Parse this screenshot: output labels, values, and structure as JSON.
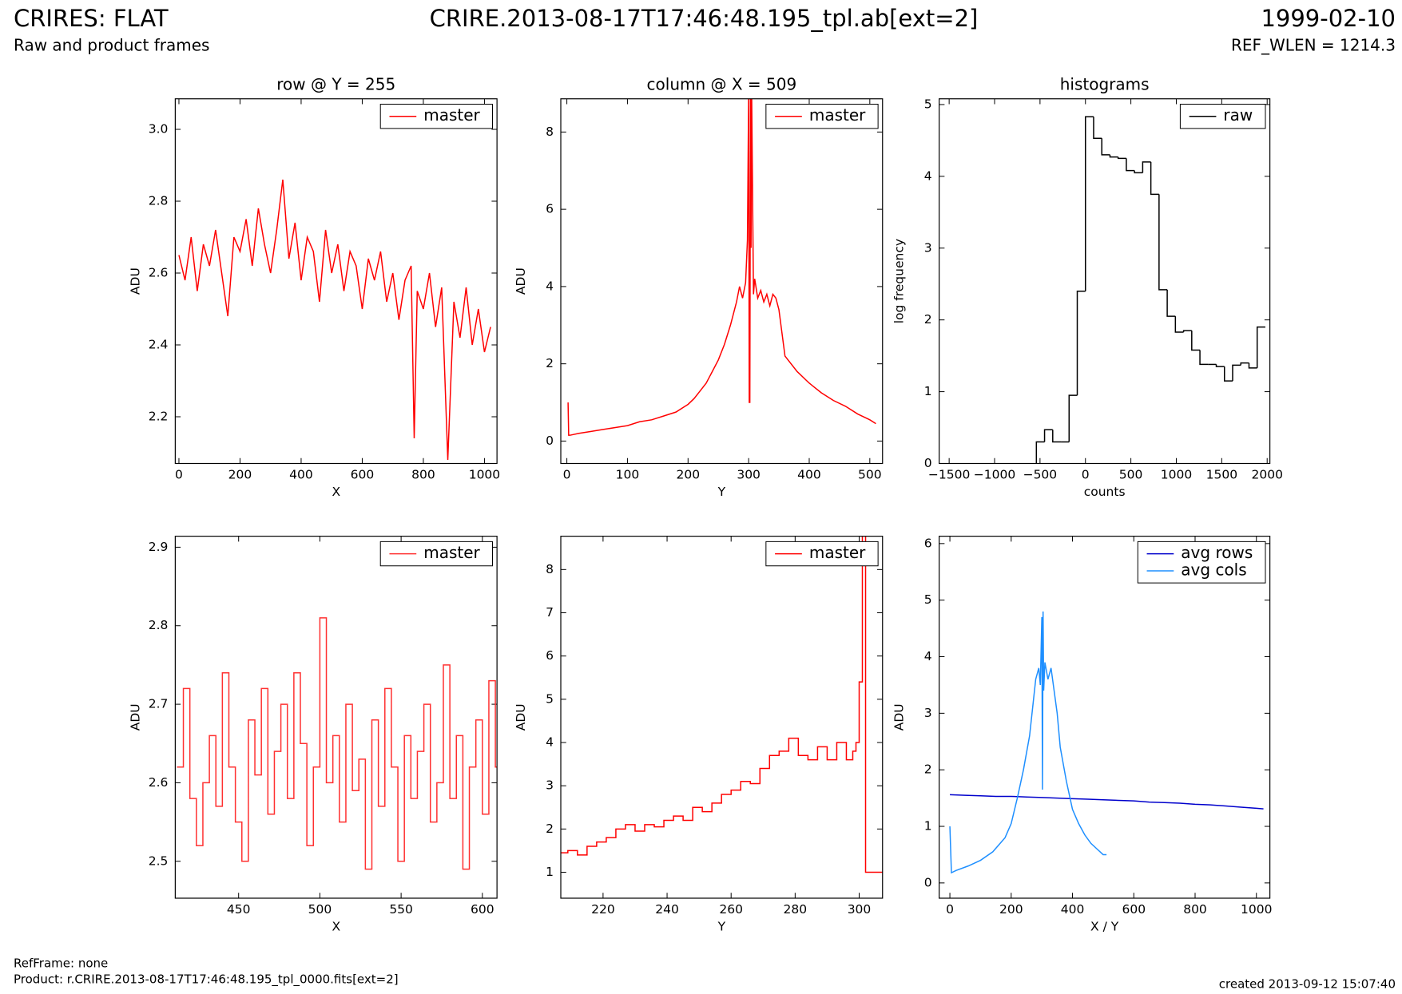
{
  "header": {
    "title": "CRIRES: FLAT",
    "subtitle": "Raw and product frames",
    "file": "CRIRE.2013-08-17T17:46:48.195_tpl.ab[ext=2]",
    "date": "1999-02-10",
    "ref_wlen": "REF_WLEN = 1214.3"
  },
  "footer": {
    "refframe": "RefFrame: none",
    "product": "Product: r.CRIRE.2013-08-17T17:46:48.195_tpl_0000.fits[ext=2]",
    "created": "created 2013-09-12 15:07:40"
  },
  "chart_data": [
    {
      "type": "line",
      "title": "row @ Y = 255",
      "xlabel": "X",
      "ylabel": "ADU",
      "legend": "upper right",
      "xlim": [
        -12,
        1041
      ],
      "ylim": [
        2.07,
        3.085
      ],
      "xticks": [
        0,
        200,
        400,
        600,
        800,
        1000
      ],
      "yticks": [
        2.2,
        2.4,
        2.6,
        2.8,
        {
          "value": 3,
          "label": "3.0"
        }
      ],
      "series": [
        {
          "name": "master",
          "color": "#ff0000",
          "x": [
            0,
            20,
            40,
            60,
            80,
            100,
            120,
            140,
            160,
            180,
            200,
            220,
            240,
            260,
            280,
            300,
            320,
            340,
            360,
            380,
            400,
            420,
            440,
            460,
            480,
            500,
            520,
            540,
            560,
            580,
            600,
            620,
            640,
            660,
            680,
            700,
            720,
            740,
            760,
            770,
            780,
            800,
            820,
            840,
            860,
            880,
            900,
            920,
            940,
            960,
            980,
            1000,
            1020
          ],
          "values": [
            2.65,
            2.58,
            2.7,
            2.55,
            2.68,
            2.62,
            2.72,
            2.6,
            2.48,
            2.7,
            2.66,
            2.75,
            2.62,
            2.78,
            2.68,
            2.6,
            2.72,
            2.86,
            2.64,
            2.74,
            2.58,
            2.7,
            2.66,
            2.52,
            2.72,
            2.6,
            2.68,
            2.55,
            2.66,
            2.62,
            2.5,
            2.64,
            2.58,
            2.66,
            2.52,
            2.6,
            2.47,
            2.58,
            2.62,
            2.14,
            2.55,
            2.5,
            2.6,
            2.45,
            2.56,
            2.08,
            2.52,
            2.42,
            2.56,
            2.4,
            2.5,
            2.38,
            2.45
          ]
        }
      ]
    },
    {
      "type": "line",
      "title": "column @ X = 509",
      "xlabel": "Y",
      "ylabel": "ADU",
      "legend": "upper right",
      "xlim": [
        -10,
        521
      ],
      "ylim": [
        -0.58,
        8.86
      ],
      "xticks": [
        0,
        100,
        200,
        300,
        400,
        500
      ],
      "yticks": [
        0,
        2,
        4,
        6,
        8
      ],
      "series": [
        {
          "name": "master",
          "color": "#ff0000",
          "x": [
            2,
            3,
            5,
            20,
            40,
            60,
            80,
            100,
            120,
            140,
            160,
            180,
            200,
            210,
            220,
            230,
            240,
            250,
            260,
            270,
            280,
            285,
            290,
            295,
            298,
            300,
            301,
            302,
            303,
            304,
            305,
            308,
            310,
            315,
            320,
            325,
            330,
            335,
            340,
            345,
            350,
            355,
            360,
            380,
            400,
            420,
            440,
            460,
            480,
            500,
            510
          ],
          "values": [
            1.0,
            0.15,
            0.15,
            0.2,
            0.25,
            0.3,
            0.35,
            0.4,
            0.5,
            0.55,
            0.65,
            0.75,
            0.95,
            1.1,
            1.3,
            1.5,
            1.8,
            2.1,
            2.5,
            3.0,
            3.6,
            4.0,
            3.7,
            4.1,
            5.2,
            9.0,
            1.0,
            1.0,
            9.0,
            5.0,
            9.0,
            3.8,
            4.2,
            3.7,
            3.9,
            3.6,
            3.8,
            3.5,
            3.8,
            3.7,
            3.4,
            2.8,
            2.2,
            1.8,
            1.5,
            1.25,
            1.05,
            0.9,
            0.7,
            0.55,
            0.45
          ]
        }
      ]
    },
    {
      "type": "histogram",
      "title": "histograms",
      "xlabel": "counts",
      "ylabel": "log frequency",
      "legend": "upper right",
      "xlim": [
        -1610,
        2030
      ],
      "ylim": [
        0,
        5.08
      ],
      "xticks": [
        {
          "value": -1500,
          "label": "−1500"
        },
        {
          "value": -1000,
          "label": "−1000"
        },
        {
          "value": -500,
          "label": "−500"
        },
        0,
        500,
        1000,
        1500,
        2000
      ],
      "yticks": [
        0,
        1,
        2,
        3,
        4,
        5
      ],
      "bins": [
        -540,
        -450,
        -360,
        -270,
        -180,
        -90,
        0,
        90,
        180,
        270,
        360,
        450,
        540,
        630,
        720,
        810,
        900,
        990,
        1080,
        1170,
        1260,
        1350,
        1440,
        1530,
        1620,
        1710,
        1800,
        1890,
        1980
      ],
      "series": [
        {
          "name": "raw",
          "color": "#000000",
          "values": [
            0.3,
            0.47,
            0.3,
            0.3,
            0.95,
            2.4,
            4.83,
            4.53,
            4.3,
            4.27,
            4.25,
            4.08,
            4.05,
            4.2,
            3.75,
            2.42,
            2.05,
            1.83,
            1.85,
            1.58,
            1.38,
            1.38,
            1.35,
            1.15,
            1.37,
            1.4,
            1.33,
            1.9
          ]
        }
      ]
    },
    {
      "type": "step",
      "xlabel": "X",
      "ylabel": "ADU",
      "legend": "upper right",
      "xlim": [
        411,
        609
      ],
      "ylim": [
        2.453,
        2.914
      ],
      "xticks": [
        450,
        500,
        550,
        600
      ],
      "yticks": [
        2.5,
        2.6,
        2.7,
        2.8,
        2.9
      ],
      "series": [
        {
          "name": "master",
          "color": "#ff3030",
          "x": [
            412,
            416,
            420,
            424,
            428,
            432,
            436,
            440,
            444,
            448,
            452,
            456,
            460,
            464,
            468,
            472,
            476,
            480,
            484,
            488,
            492,
            496,
            500,
            504,
            508,
            512,
            516,
            520,
            524,
            528,
            532,
            536,
            540,
            544,
            548,
            552,
            556,
            560,
            564,
            568,
            572,
            576,
            580,
            584,
            588,
            592,
            596,
            600,
            604,
            608
          ],
          "values": [
            2.62,
            2.72,
            2.58,
            2.52,
            2.6,
            2.66,
            2.57,
            2.74,
            2.62,
            2.55,
            2.5,
            2.68,
            2.61,
            2.72,
            2.56,
            2.64,
            2.7,
            2.58,
            2.74,
            2.65,
            2.52,
            2.62,
            2.81,
            2.6,
            2.66,
            2.55,
            2.7,
            2.59,
            2.63,
            2.49,
            2.68,
            2.57,
            2.72,
            2.62,
            2.5,
            2.66,
            2.58,
            2.64,
            2.7,
            2.55,
            2.6,
            2.75,
            2.58,
            2.66,
            2.49,
            2.62,
            2.68,
            2.56,
            2.73,
            2.62
          ]
        }
      ]
    },
    {
      "type": "step",
      "xlabel": "Y",
      "ylabel": "ADU",
      "legend": "upper right",
      "xlim": [
        206.8,
        307.3
      ],
      "ylim": [
        0.4,
        8.77
      ],
      "xticks": [
        220,
        240,
        260,
        280,
        300
      ],
      "yticks": [
        1,
        2,
        3,
        4,
        5,
        6,
        7,
        8
      ],
      "series": [
        {
          "name": "master",
          "color": "#ff0000",
          "x": [
            206,
            209,
            212,
            215,
            218,
            221,
            224,
            227,
            230,
            233,
            236,
            239,
            242,
            245,
            248,
            251,
            254,
            257,
            260,
            263,
            266,
            269,
            272,
            275,
            278,
            281,
            284,
            287,
            290,
            293,
            296,
            298,
            299,
            300,
            301,
            302,
            305,
            307
          ],
          "values": [
            1.45,
            1.5,
            1.4,
            1.6,
            1.7,
            1.8,
            2.0,
            2.1,
            1.95,
            2.1,
            2.05,
            2.2,
            2.3,
            2.2,
            2.5,
            2.4,
            2.6,
            2.8,
            2.9,
            3.1,
            3.05,
            3.4,
            3.7,
            3.8,
            4.1,
            3.7,
            3.6,
            3.9,
            3.6,
            4.0,
            3.6,
            3.8,
            4.0,
            5.4,
            8.8,
            1.0,
            1.0,
            1.0
          ]
        }
      ]
    },
    {
      "type": "line",
      "xlabel": "X / Y",
      "ylabel": "ADU",
      "legend": "upper right",
      "xlim": [
        -35,
        1044
      ],
      "ylim": [
        -0.27,
        6.13
      ],
      "xticks": [
        0,
        200,
        400,
        600,
        800,
        1000
      ],
      "yticks": [
        0,
        1,
        2,
        3,
        4,
        5,
        6
      ],
      "series": [
        {
          "name": "avg rows",
          "color": "#0000cc",
          "x": [
            0,
            50,
            100,
            150,
            200,
            250,
            300,
            350,
            400,
            450,
            500,
            550,
            600,
            650,
            700,
            750,
            800,
            850,
            900,
            950,
            1000,
            1023
          ],
          "values": [
            1.56,
            1.55,
            1.54,
            1.53,
            1.53,
            1.52,
            1.51,
            1.5,
            1.49,
            1.48,
            1.47,
            1.46,
            1.45,
            1.43,
            1.42,
            1.41,
            1.39,
            1.38,
            1.36,
            1.34,
            1.32,
            1.31
          ]
        },
        {
          "name": "avg cols",
          "color": "#1e8fff",
          "x": [
            0,
            5,
            20,
            60,
            100,
            140,
            180,
            200,
            220,
            240,
            260,
            280,
            290,
            295,
            300,
            302,
            304,
            306,
            310,
            320,
            330,
            340,
            350,
            360,
            380,
            400,
            420,
            440,
            460,
            480,
            500,
            511
          ],
          "values": [
            1.0,
            0.18,
            0.22,
            0.3,
            0.4,
            0.55,
            0.8,
            1.05,
            1.5,
            2.0,
            2.6,
            3.6,
            3.8,
            3.5,
            4.7,
            1.65,
            4.8,
            3.4,
            3.9,
            3.6,
            3.8,
            3.4,
            3.0,
            2.4,
            1.8,
            1.3,
            1.05,
            0.85,
            0.7,
            0.6,
            0.5,
            0.5
          ]
        }
      ]
    }
  ]
}
